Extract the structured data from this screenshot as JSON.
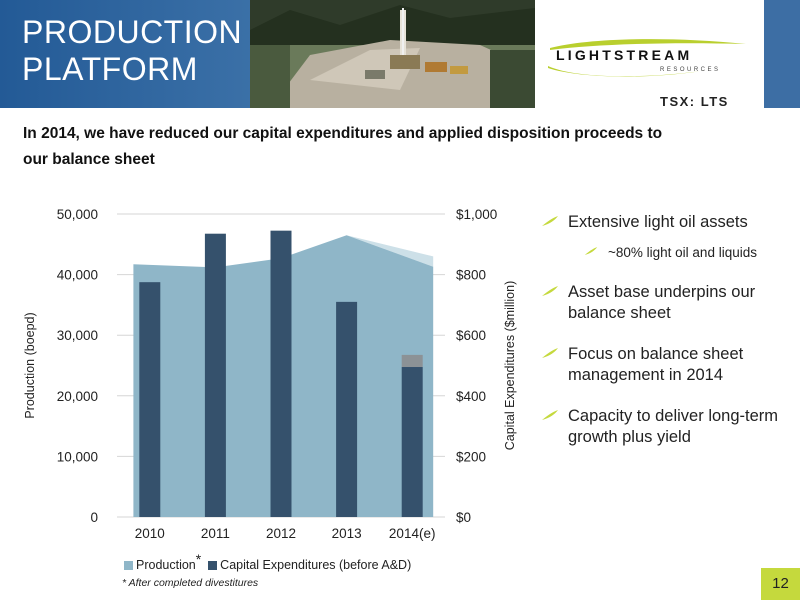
{
  "header": {
    "title_line1": "PRODUCTION",
    "title_line2": "PLATFORM",
    "logo_text": "LIGHTSTREAM",
    "logo_subtext": "RESOURCES",
    "ticker": "TSX: LTS"
  },
  "subtitle": "In 2014, we have reduced our capital expenditures and applied disposition proceeds to our balance sheet",
  "bullets": [
    {
      "text": "Extensive light oil assets"
    },
    {
      "text": "~80% light oil and liquids",
      "sub": true
    },
    {
      "text": "Asset base underpins our balance sheet"
    },
    {
      "text": "Focus on balance sheet management in 2014"
    },
    {
      "text": "Capacity to deliver long-term growth plus yield"
    }
  ],
  "footnote": "* After completed divestitures",
  "page_number": "12",
  "colors": {
    "production_area": "#8fb6c8",
    "divested_area": "#cde0e8",
    "capex_bar": "#35516c",
    "capex_bar_top": "#8c9296",
    "accent": "#c5d93d",
    "title_band": "#2e67a1"
  },
  "chart_data": {
    "type": "bar",
    "categories": [
      "2010",
      "2011",
      "2012",
      "2013",
      "2014(e)"
    ],
    "series": [
      {
        "name": "Production",
        "axis": "left",
        "kind": "area",
        "values": [
          41700,
          41200,
          42700,
          46500,
          41300
        ],
        "pre_divestiture": [
          null,
          null,
          null,
          46500,
          43000
        ]
      },
      {
        "name": "Capital Expenditures (before A&D)",
        "axis": "right",
        "kind": "bar",
        "values": [
          775,
          935,
          945,
          710,
          535
        ],
        "value_2014_lower": 495
      }
    ],
    "ylabel": "Production (boepd)",
    "y2label": "Capital Expenditures ($million)",
    "ylim": [
      0,
      50000
    ],
    "y2lim": [
      0,
      1000
    ],
    "y_ticks": [
      "0",
      "10,000",
      "20,000",
      "30,000",
      "40,000",
      "50,000"
    ],
    "y2_ticks": [
      "$0",
      "$200",
      "$400",
      "$600",
      "$800",
      "$1,000"
    ],
    "grid": true,
    "legend": [
      {
        "label": "Production",
        "asterisk": "*"
      },
      {
        "label": "Capital Expenditures (before A&D)"
      }
    ],
    "legend_position": "bottom"
  }
}
